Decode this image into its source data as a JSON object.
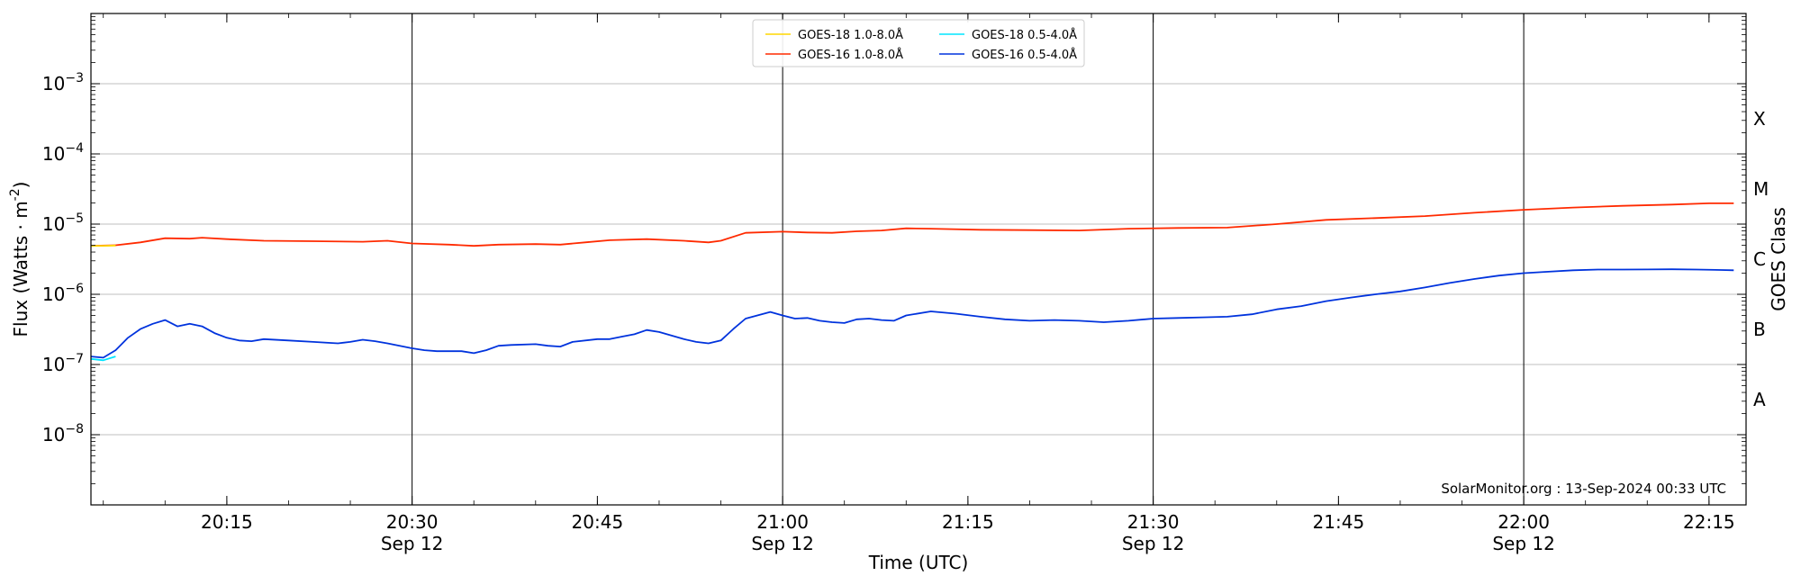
{
  "chart_data": {
    "type": "line",
    "title": "",
    "xlabel": "Time (UTC)",
    "ylabel": "Flux (Watts · m",
    "ylabel_sup": "-2",
    "ylabel_close": ")",
    "right_label": "GOES Class",
    "y_scale": "log",
    "ylim": [
      1e-09,
      0.01
    ],
    "xlim": [
      "20:04",
      "22:18"
    ],
    "grid": "horizontal",
    "legend_position": "top-center",
    "y_ticks": [
      {
        "value": 1e-08,
        "base": "10",
        "exp": "−8"
      },
      {
        "value": 1e-07,
        "base": "10",
        "exp": "−7"
      },
      {
        "value": 1e-06,
        "base": "10",
        "exp": "−6"
      },
      {
        "value": 1e-05,
        "base": "10",
        "exp": "−5"
      },
      {
        "value": 0.0001,
        "base": "10",
        "exp": "−4"
      },
      {
        "value": 0.001,
        "base": "10",
        "exp": "−3"
      }
    ],
    "x_ticks": [
      {
        "time": "20:15",
        "label": "20:15",
        "sub": ""
      },
      {
        "time": "20:30",
        "label": "20:30",
        "sub": "Sep 12"
      },
      {
        "time": "20:45",
        "label": "20:45",
        "sub": ""
      },
      {
        "time": "21:00",
        "label": "21:00",
        "sub": "Sep 12"
      },
      {
        "time": "21:15",
        "label": "21:15",
        "sub": ""
      },
      {
        "time": "21:30",
        "label": "21:30",
        "sub": "Sep 12"
      },
      {
        "time": "21:45",
        "label": "21:45",
        "sub": ""
      },
      {
        "time": "22:00",
        "label": "22:00",
        "sub": "Sep 12"
      },
      {
        "time": "22:15",
        "label": "22:15",
        "sub": ""
      }
    ],
    "vertical_lines": [
      "20:30",
      "21:00",
      "21:30",
      "22:00"
    ],
    "goes_classes": [
      {
        "label": "A",
        "value": 3.16e-08
      },
      {
        "label": "B",
        "value": 3.16e-07
      },
      {
        "label": "C",
        "value": 3.16e-06
      },
      {
        "label": "M",
        "value": 3.16e-05
      },
      {
        "label": "X",
        "value": 0.000316
      }
    ],
    "annotation": "SolarMonitor.org : 13-Sep-2024 00:33 UTC",
    "series": [
      {
        "name": "GOES-18 1.0-8.0Å",
        "color": "#ffd700",
        "times": [
          "20:04",
          "20:05",
          "20:06"
        ],
        "values": [
          4.9e-06,
          4.9e-06,
          4.95e-06
        ]
      },
      {
        "name": "GOES-18 0.5-4.0Å",
        "color": "#00e5ff",
        "times": [
          "20:04",
          "20:05",
          "20:06"
        ],
        "values": [
          1.2e-07,
          1.15e-07,
          1.3e-07
        ]
      },
      {
        "name": "GOES-16 1.0-8.0Å",
        "color": "#ff2a00",
        "times": [
          "20:04",
          "20:06",
          "20:08",
          "20:10",
          "20:12",
          "20:13",
          "20:15",
          "20:18",
          "20:22",
          "20:26",
          "20:28",
          "20:30",
          "20:33",
          "20:35",
          "20:37",
          "20:40",
          "20:42",
          "20:44",
          "20:46",
          "20:49",
          "20:52",
          "20:54",
          "20:55",
          "20:57",
          "21:00",
          "21:02",
          "21:04",
          "21:06",
          "21:08",
          "21:10",
          "21:12",
          "21:16",
          "21:20",
          "21:24",
          "21:28",
          "21:32",
          "21:36",
          "21:40",
          "21:44",
          "21:48",
          "21:52",
          "21:56",
          "22:00",
          "22:04",
          "22:08",
          "22:12",
          "22:15",
          "22:17"
        ],
        "values": [
          4.9e-06,
          5e-06,
          5.5e-06,
          6.3e-06,
          6.2e-06,
          6.4e-06,
          6.1e-06,
          5.8e-06,
          5.7e-06,
          5.6e-06,
          5.8e-06,
          5.3e-06,
          5.1e-06,
          4.9e-06,
          5.1e-06,
          5.2e-06,
          5.1e-06,
          5.5e-06,
          5.9e-06,
          6.1e-06,
          5.8e-06,
          5.5e-06,
          5.8e-06,
          7.5e-06,
          7.8e-06,
          7.6e-06,
          7.5e-06,
          7.9e-06,
          8.1e-06,
          8.7e-06,
          8.6e-06,
          8.3e-06,
          8.2e-06,
          8.1e-06,
          8.6e-06,
          8.8e-06,
          8.9e-06,
          1e-05,
          1.15e-05,
          1.22e-05,
          1.3e-05,
          1.45e-05,
          1.6e-05,
          1.72e-05,
          1.82e-05,
          1.9e-05,
          1.98e-05,
          1.98e-05
        ]
      },
      {
        "name": "GOES-16 0.5-4.0Å",
        "color": "#0033dd",
        "times": [
          "20:04",
          "20:05",
          "20:06",
          "20:07",
          "20:08",
          "20:09",
          "20:10",
          "20:11",
          "20:12",
          "20:13",
          "20:14",
          "20:15",
          "20:16",
          "20:17",
          "20:18",
          "20:20",
          "20:22",
          "20:24",
          "20:25",
          "20:26",
          "20:27",
          "20:28",
          "20:30",
          "20:31",
          "20:32",
          "20:33",
          "20:34",
          "20:35",
          "20:36",
          "20:37",
          "20:38",
          "20:40",
          "20:41",
          "20:42",
          "20:43",
          "20:45",
          "20:46",
          "20:47",
          "20:48",
          "20:49",
          "20:50",
          "20:52",
          "20:53",
          "20:54",
          "20:55",
          "20:56",
          "20:57",
          "20:59",
          "21:00",
          "21:01",
          "21:02",
          "21:03",
          "21:04",
          "21:05",
          "21:06",
          "21:07",
          "21:08",
          "21:09",
          "21:10",
          "21:12",
          "21:14",
          "21:16",
          "21:18",
          "21:20",
          "21:22",
          "21:24",
          "21:26",
          "21:28",
          "21:30",
          "21:32",
          "21:34",
          "21:36",
          "21:38",
          "21:40",
          "21:42",
          "21:44",
          "21:46",
          "21:48",
          "21:50",
          "21:52",
          "21:54",
          "21:56",
          "21:58",
          "22:00",
          "22:02",
          "22:04",
          "22:06",
          "22:08",
          "22:10",
          "22:12",
          "22:14",
          "22:16",
          "22:17"
        ],
        "values": [
          1.3e-07,
          1.25e-07,
          1.6e-07,
          2.4e-07,
          3.2e-07,
          3.8e-07,
          4.3e-07,
          3.5e-07,
          3.8e-07,
          3.5e-07,
          2.8e-07,
          2.4e-07,
          2.2e-07,
          2.15e-07,
          2.3e-07,
          2.2e-07,
          2.1e-07,
          2e-07,
          2.1e-07,
          2.25e-07,
          2.15e-07,
          2e-07,
          1.7e-07,
          1.6e-07,
          1.55e-07,
          1.55e-07,
          1.55e-07,
          1.45e-07,
          1.6e-07,
          1.85e-07,
          1.9e-07,
          1.95e-07,
          1.85e-07,
          1.8e-07,
          2.1e-07,
          2.3e-07,
          2.3e-07,
          2.5e-07,
          2.7e-07,
          3.1e-07,
          2.9e-07,
          2.3e-07,
          2.1e-07,
          2e-07,
          2.2e-07,
          3.2e-07,
          4.5e-07,
          5.6e-07,
          5e-07,
          4.5e-07,
          4.6e-07,
          4.2e-07,
          4e-07,
          3.9e-07,
          4.4e-07,
          4.5e-07,
          4.3e-07,
          4.2e-07,
          5e-07,
          5.7e-07,
          5.3e-07,
          4.8e-07,
          4.4e-07,
          4.2e-07,
          4.3e-07,
          4.2e-07,
          4e-07,
          4.2e-07,
          4.5e-07,
          4.6e-07,
          4.7e-07,
          4.8e-07,
          5.2e-07,
          6.1e-07,
          6.8e-07,
          8e-07,
          9e-07,
          1e-06,
          1.1e-06,
          1.25e-06,
          1.45e-06,
          1.65e-06,
          1.85e-06,
          2e-06,
          2.1e-06,
          2.2e-06,
          2.25e-06,
          2.25e-06,
          2.26e-06,
          2.27e-06,
          2.25e-06,
          2.22e-06,
          2.2e-06
        ]
      }
    ]
  }
}
